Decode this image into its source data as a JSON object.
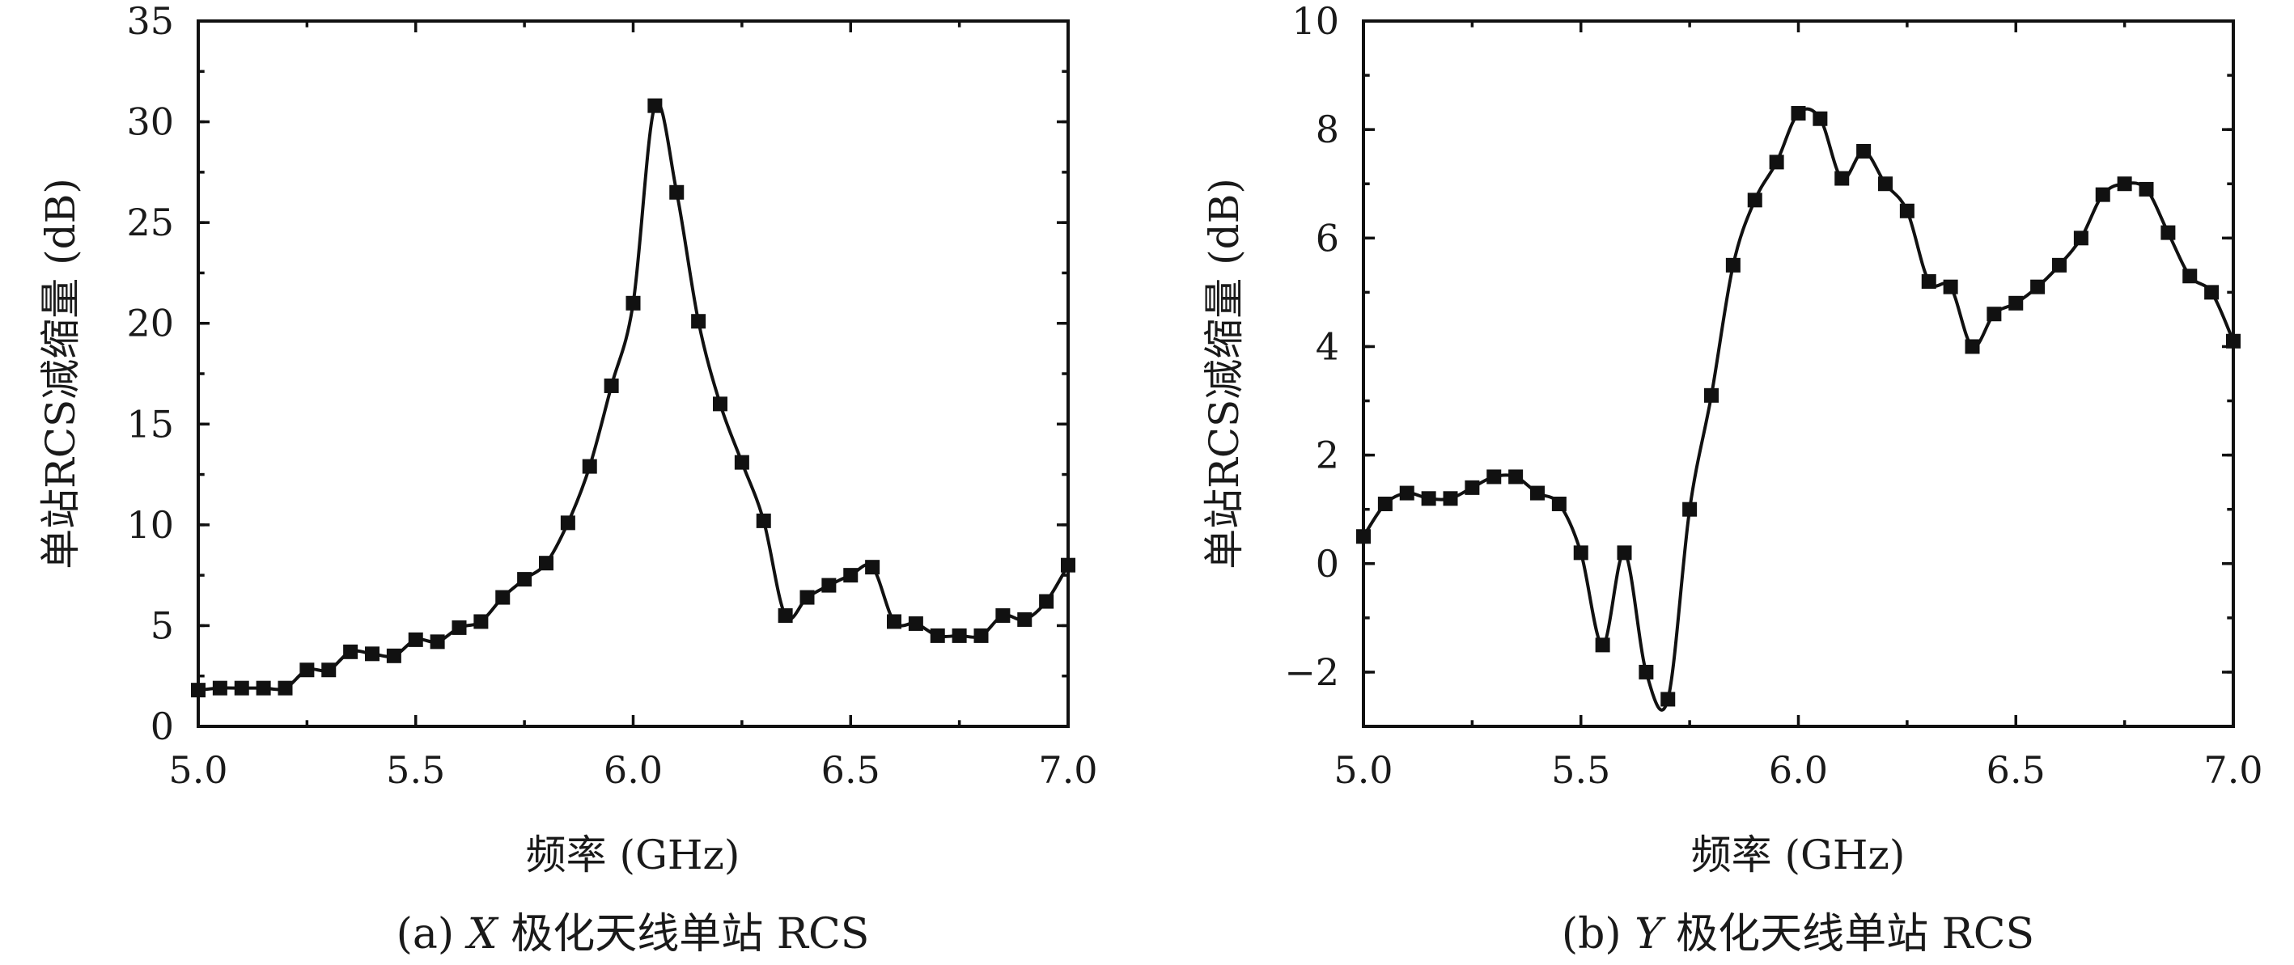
{
  "chart_data": [
    {
      "type": "line",
      "caption_prefix": "(a) ",
      "caption_var": "X",
      "caption_suffix": " 极化天线单站 RCS",
      "xlabel": "频率 (GHz)",
      "ylabel": "单站RCS减缩量 (dB)",
      "xlim": [
        5.0,
        7.0
      ],
      "ylim": [
        0,
        35
      ],
      "xticks": [
        "5.0",
        "5.5",
        "6.0",
        "6.5",
        "7.0"
      ],
      "yticks": [
        "0",
        "5",
        "10",
        "15",
        "20",
        "25",
        "30",
        "35"
      ],
      "grid": false,
      "marker": "square",
      "series": [
        {
          "x": [
            5.0,
            5.05,
            5.1,
            5.15,
            5.2,
            5.25,
            5.3,
            5.35,
            5.4,
            5.45,
            5.5,
            5.55,
            5.6,
            5.65,
            5.7,
            5.75,
            5.8,
            5.85,
            5.9,
            5.95,
            6.0,
            6.05,
            6.1,
            6.15,
            6.2,
            6.25,
            6.3,
            6.35,
            6.4,
            6.45,
            6.5,
            6.55,
            6.6,
            6.65,
            6.7,
            6.75,
            6.8,
            6.85,
            6.9,
            6.95,
            7.0
          ],
          "y": [
            1.8,
            1.9,
            1.9,
            1.9,
            1.9,
            2.8,
            2.8,
            3.7,
            3.6,
            3.5,
            4.3,
            4.2,
            4.9,
            5.2,
            6.4,
            7.3,
            8.1,
            10.1,
            12.9,
            16.9,
            21.0,
            30.8,
            26.5,
            20.1,
            16.0,
            13.1,
            10.2,
            5.5,
            6.4,
            7.0,
            7.5,
            7.9,
            5.2,
            5.1,
            4.5,
            4.5,
            4.5,
            5.5,
            5.3,
            6.2,
            8.0
          ]
        }
      ]
    },
    {
      "type": "line",
      "caption_prefix": "(b) ",
      "caption_var": "Y",
      "caption_suffix": " 极化天线单站 RCS",
      "xlabel": "频率 (GHz)",
      "ylabel": "单站RCS减缩量 (dB)",
      "xlim": [
        5.0,
        7.0
      ],
      "ylim": [
        -3,
        10
      ],
      "xticks": [
        "5.0",
        "5.5",
        "6.0",
        "6.5",
        "7.0"
      ],
      "yticks": [
        "−2",
        "0",
        "2",
        "4",
        "6",
        "8",
        "10"
      ],
      "grid": false,
      "marker": "square",
      "series": [
        {
          "x": [
            5.0,
            5.05,
            5.1,
            5.15,
            5.2,
            5.25,
            5.3,
            5.35,
            5.4,
            5.45,
            5.5,
            5.55,
            5.6,
            5.65,
            5.7,
            5.75,
            5.8,
            5.85,
            5.9,
            5.95,
            6.0,
            6.05,
            6.1,
            6.15,
            6.2,
            6.25,
            6.3,
            6.35,
            6.4,
            6.45,
            6.5,
            6.55,
            6.6,
            6.65,
            6.7,
            6.75,
            6.8,
            6.85,
            6.9,
            6.95,
            7.0
          ],
          "y": [
            0.5,
            1.1,
            1.3,
            1.2,
            1.2,
            1.4,
            1.6,
            1.6,
            1.3,
            1.1,
            0.2,
            -1.5,
            0.2,
            -2.0,
            -2.5,
            1.0,
            3.1,
            5.5,
            6.7,
            7.4,
            8.3,
            8.2,
            7.1,
            7.6,
            7.0,
            6.5,
            5.2,
            5.1,
            4.0,
            4.6,
            4.8,
            5.1,
            5.5,
            6.0,
            6.8,
            7.0,
            6.9,
            6.1,
            5.3,
            5.0,
            4.1
          ]
        }
      ]
    }
  ]
}
